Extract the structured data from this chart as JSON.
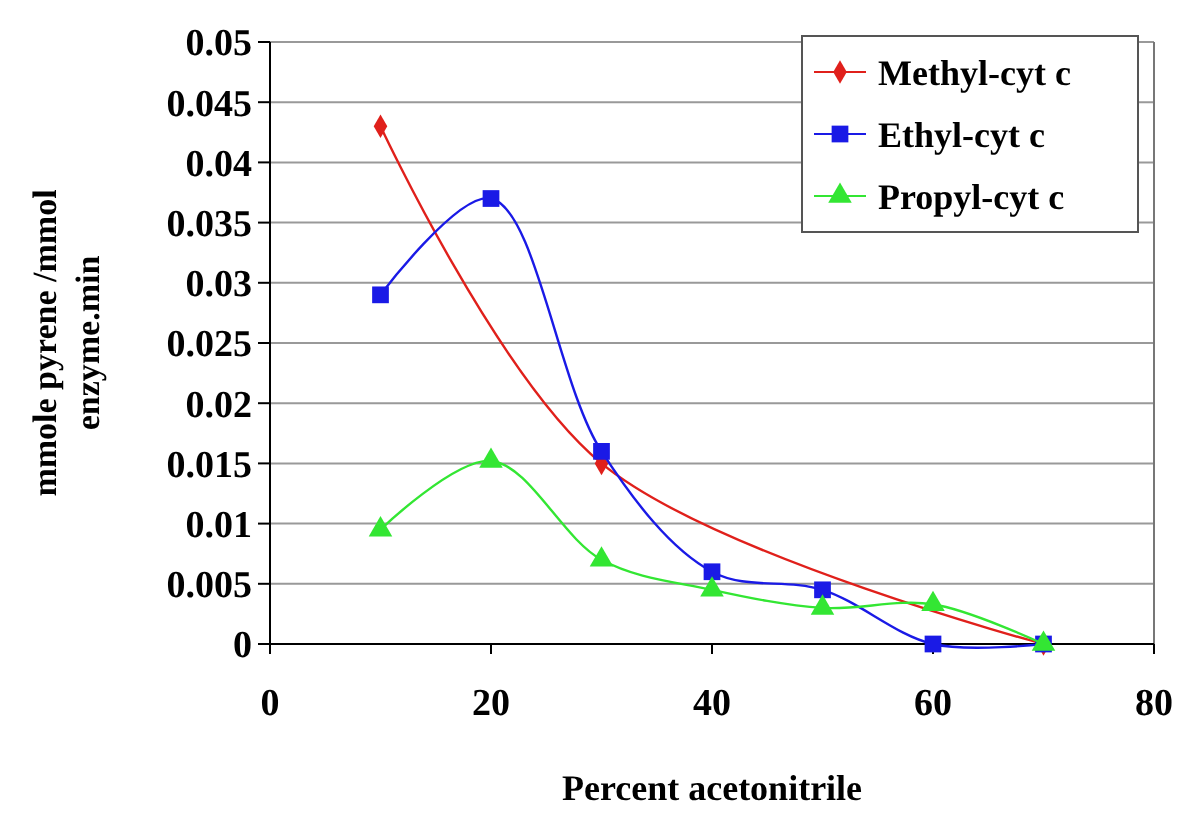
{
  "chart_data": {
    "type": "line",
    "xlabel": "Percent acetonitrile",
    "ylabel": "mmole pyrene /mmol enzyme.min",
    "xlim": [
      0,
      80
    ],
    "xticks": [
      0,
      20,
      40,
      60,
      80
    ],
    "ylim": [
      0,
      0.05
    ],
    "yticks": [
      0,
      0.005,
      0.01,
      0.015,
      0.02,
      0.025,
      0.03,
      0.035,
      0.04,
      0.045,
      0.05
    ],
    "grid": "y",
    "legend": "top right",
    "series": [
      {
        "name": "Methyl-cyt c",
        "color": "#e0201b",
        "marker": "diamond",
        "x": [
          10,
          30,
          70
        ],
        "values": [
          0.043,
          0.015,
          0
        ]
      },
      {
        "name": "Ethyl-cyt c",
        "color": "#1a1ae6",
        "marker": "square",
        "x": [
          10,
          20,
          30,
          40,
          50,
          60,
          70
        ],
        "values": [
          0.029,
          0.037,
          0.016,
          0.006,
          0.0045,
          0,
          0
        ]
      },
      {
        "name": "Propyl-cyt c",
        "color": "#33e633",
        "marker": "triangle",
        "x": [
          10,
          20,
          30,
          40,
          50,
          60,
          70
        ],
        "values": [
          0.0095,
          0.0152,
          0.007,
          0.0045,
          0.003,
          0.0033,
          0
        ]
      }
    ]
  }
}
